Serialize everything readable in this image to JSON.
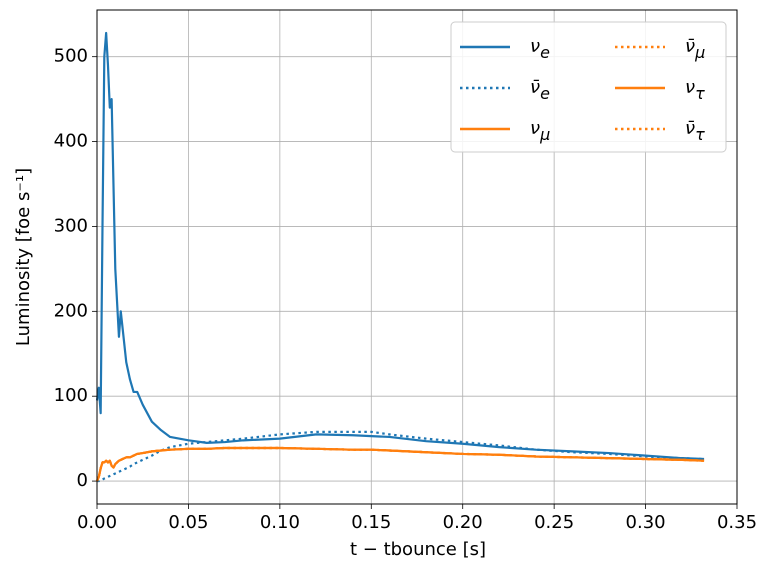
{
  "chart_data": {
    "type": "line",
    "x_label": "t − tbounce [s]",
    "y_label": "Luminosity [foe s⁻¹]",
    "x": [
      0,
      0.001,
      0.002,
      0.003,
      0.004,
      0.005,
      0.006,
      0.007,
      0.008,
      0.009,
      0.01,
      0.012,
      0.013,
      0.014,
      0.016,
      0.018,
      0.02,
      0.022,
      0.025,
      0.03,
      0.035,
      0.04,
      0.05,
      0.06,
      0.07,
      0.08,
      0.1,
      0.12,
      0.14,
      0.15,
      0.16,
      0.18,
      0.2,
      0.22,
      0.24,
      0.26,
      0.28,
      0.3,
      0.32,
      0.332
    ],
    "series": [
      {
        "name": "νe",
        "color": "#1f77b4",
        "linestyle": "solid",
        "values": [
          95,
          110,
          80,
          300,
          500,
          528,
          490,
          440,
          450,
          350,
          250,
          170,
          200,
          180,
          140,
          120,
          105,
          105,
          90,
          70,
          60,
          52,
          48,
          45,
          46,
          48,
          50,
          55,
          54,
          53,
          52,
          47,
          44,
          40,
          37,
          35,
          33,
          30,
          27,
          26
        ]
      },
      {
        "name": "ν̄e",
        "color": "#1f77b4",
        "linestyle": "dotted",
        "values": [
          0,
          0,
          1,
          2,
          3,
          4,
          5,
          6,
          7,
          8,
          9,
          11,
          12,
          13,
          15,
          17,
          20,
          22,
          25,
          30,
          36,
          40,
          44,
          46,
          48,
          50,
          55,
          58,
          58,
          58,
          55,
          50,
          46,
          42,
          37,
          34,
          32,
          29,
          27,
          26
        ]
      },
      {
        "name": "νμ",
        "color": "#ff7f0e",
        "linestyle": "solid",
        "values": [
          0,
          5,
          15,
          22,
          22,
          24,
          22,
          24,
          18,
          16,
          20,
          24,
          25,
          26,
          28,
          28,
          30,
          32,
          33,
          35,
          36,
          37,
          38,
          38,
          39,
          39,
          39,
          38,
          37,
          37,
          36,
          34,
          32,
          31,
          29,
          28,
          27,
          26,
          25,
          24
        ]
      },
      {
        "name": "ν̄μ",
        "color": "#ff7f0e",
        "linestyle": "dotted",
        "values": [
          0,
          5,
          15,
          22,
          22,
          24,
          22,
          24,
          18,
          16,
          20,
          24,
          25,
          26,
          28,
          28,
          30,
          32,
          33,
          35,
          36,
          37,
          38,
          38,
          39,
          39,
          39,
          38,
          37,
          37,
          36,
          34,
          32,
          31,
          29,
          28,
          27,
          26,
          25,
          24
        ]
      },
      {
        "name": "ντ",
        "color": "#ff7f0e",
        "linestyle": "solid",
        "values": [
          0,
          5,
          15,
          22,
          22,
          24,
          22,
          24,
          18,
          16,
          20,
          24,
          25,
          26,
          28,
          28,
          30,
          32,
          33,
          35,
          36,
          37,
          38,
          38,
          39,
          39,
          39,
          38,
          37,
          37,
          36,
          34,
          32,
          31,
          29,
          28,
          27,
          26,
          25,
          24
        ]
      },
      {
        "name": "ν̄τ",
        "color": "#ff7f0e",
        "linestyle": "dotted",
        "values": [
          0,
          5,
          15,
          22,
          22,
          24,
          22,
          24,
          18,
          16,
          20,
          24,
          25,
          26,
          28,
          28,
          30,
          32,
          33,
          35,
          36,
          37,
          38,
          38,
          39,
          39,
          39,
          38,
          37,
          37,
          36,
          34,
          32,
          31,
          29,
          28,
          27,
          26,
          25,
          24
        ]
      }
    ],
    "xlim": [
      0,
      0.35
    ],
    "ylim": [
      -27,
      555
    ],
    "xticks": [
      {
        "value": 0,
        "label": "0.00"
      },
      {
        "value": 0.05,
        "label": "0.05"
      },
      {
        "value": 0.1,
        "label": "0.10"
      },
      {
        "value": 0.15,
        "label": "0.15"
      },
      {
        "value": 0.2,
        "label": "0.20"
      },
      {
        "value": 0.25,
        "label": "0.25"
      },
      {
        "value": 0.3,
        "label": "0.30"
      },
      {
        "value": 0.35,
        "label": "0.35"
      }
    ],
    "yticks": [
      0,
      100,
      200,
      300,
      400,
      500
    ],
    "grid": true,
    "legend": "upper right",
    "legend_columns": 2
  }
}
